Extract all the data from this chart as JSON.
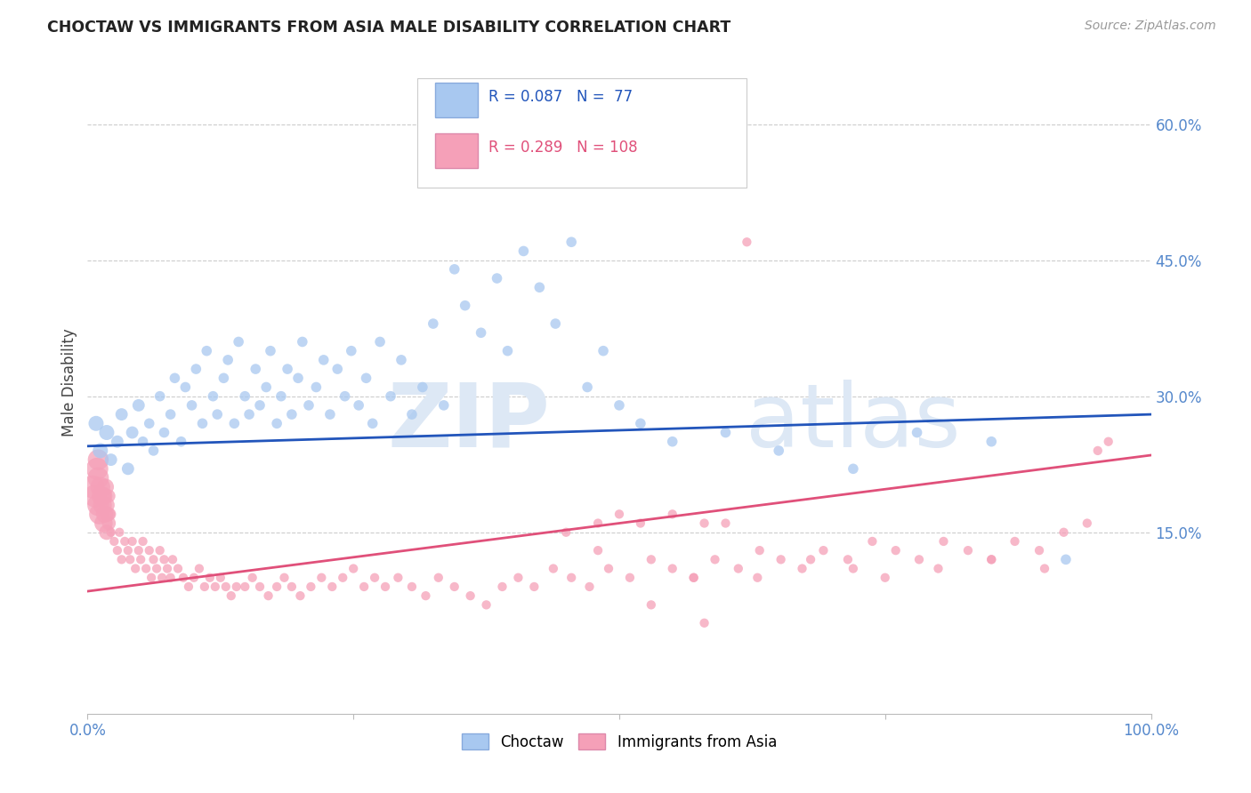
{
  "title": "CHOCTAW VS IMMIGRANTS FROM ASIA MALE DISABILITY CORRELATION CHART",
  "source": "Source: ZipAtlas.com",
  "ylabel": "Male Disability",
  "legend_label1": "Choctaw",
  "legend_label2": "Immigrants from Asia",
  "r1": 0.087,
  "n1": 77,
  "r2": 0.289,
  "n2": 108,
  "color1": "#A8C8F0",
  "color2": "#F5A0B8",
  "line_color1": "#2255BB",
  "line_color2": "#E0507A",
  "xlim": [
    0.0,
    1.0
  ],
  "ylim": [
    -0.05,
    0.68
  ],
  "yticks": [
    0.15,
    0.3,
    0.45,
    0.6
  ],
  "ytick_labels": [
    "15.0%",
    "30.0%",
    "45.0%",
    "60.0%"
  ],
  "xticks": [
    0.0,
    0.25,
    0.5,
    0.75,
    1.0
  ],
  "xtick_labels": [
    "0.0%",
    "",
    "",
    "",
    "100.0%"
  ],
  "blue_line": [
    0.245,
    0.28
  ],
  "pink_line": [
    0.085,
    0.235
  ],
  "choctaw_x": [
    0.008,
    0.012,
    0.018,
    0.022,
    0.028,
    0.032,
    0.038,
    0.042,
    0.048,
    0.052,
    0.058,
    0.062,
    0.068,
    0.072,
    0.078,
    0.082,
    0.088,
    0.092,
    0.098,
    0.102,
    0.108,
    0.112,
    0.118,
    0.122,
    0.128,
    0.132,
    0.138,
    0.142,
    0.148,
    0.152,
    0.158,
    0.162,
    0.168,
    0.172,
    0.178,
    0.182,
    0.188,
    0.192,
    0.198,
    0.202,
    0.208,
    0.215,
    0.222,
    0.228,
    0.235,
    0.242,
    0.248,
    0.255,
    0.262,
    0.268,
    0.275,
    0.285,
    0.295,
    0.305,
    0.315,
    0.325,
    0.335,
    0.345,
    0.355,
    0.37,
    0.385,
    0.395,
    0.41,
    0.425,
    0.44,
    0.455,
    0.47,
    0.485,
    0.5,
    0.52,
    0.55,
    0.6,
    0.65,
    0.72,
    0.78,
    0.85,
    0.92
  ],
  "choctaw_y": [
    0.27,
    0.24,
    0.26,
    0.23,
    0.25,
    0.28,
    0.22,
    0.26,
    0.29,
    0.25,
    0.27,
    0.24,
    0.3,
    0.26,
    0.28,
    0.32,
    0.25,
    0.31,
    0.29,
    0.33,
    0.27,
    0.35,
    0.3,
    0.28,
    0.32,
    0.34,
    0.27,
    0.36,
    0.3,
    0.28,
    0.33,
    0.29,
    0.31,
    0.35,
    0.27,
    0.3,
    0.33,
    0.28,
    0.32,
    0.36,
    0.29,
    0.31,
    0.34,
    0.28,
    0.33,
    0.3,
    0.35,
    0.29,
    0.32,
    0.27,
    0.36,
    0.3,
    0.34,
    0.28,
    0.31,
    0.38,
    0.29,
    0.44,
    0.4,
    0.37,
    0.43,
    0.35,
    0.46,
    0.42,
    0.38,
    0.47,
    0.31,
    0.35,
    0.29,
    0.27,
    0.25,
    0.26,
    0.24,
    0.22,
    0.26,
    0.25,
    0.12
  ],
  "asia_x_small": [
    0.005,
    0.007,
    0.009,
    0.01,
    0.01,
    0.01,
    0.011,
    0.012,
    0.013,
    0.014,
    0.015,
    0.015,
    0.016,
    0.017,
    0.018,
    0.018,
    0.019,
    0.02,
    0.02,
    0.021
  ],
  "asia_y_small": [
    0.2,
    0.19,
    0.22,
    0.18,
    0.21,
    0.23,
    0.17,
    0.2,
    0.19,
    0.18,
    0.16,
    0.19,
    0.17,
    0.2,
    0.18,
    0.15,
    0.17,
    0.16,
    0.19,
    0.17
  ],
  "asia_x": [
    0.022,
    0.025,
    0.028,
    0.03,
    0.032,
    0.035,
    0.038,
    0.04,
    0.042,
    0.045,
    0.048,
    0.05,
    0.052,
    0.055,
    0.058,
    0.06,
    0.062,
    0.065,
    0.068,
    0.07,
    0.072,
    0.075,
    0.078,
    0.08,
    0.085,
    0.09,
    0.095,
    0.1,
    0.105,
    0.11,
    0.115,
    0.12,
    0.125,
    0.13,
    0.135,
    0.14,
    0.148,
    0.155,
    0.162,
    0.17,
    0.178,
    0.185,
    0.192,
    0.2,
    0.21,
    0.22,
    0.23,
    0.24,
    0.25,
    0.26,
    0.27,
    0.28,
    0.292,
    0.305,
    0.318,
    0.33,
    0.345,
    0.36,
    0.375,
    0.39,
    0.405,
    0.42,
    0.438,
    0.455,
    0.472,
    0.49,
    0.51,
    0.53,
    0.55,
    0.57,
    0.59,
    0.612,
    0.632,
    0.652,
    0.672,
    0.692,
    0.715,
    0.738,
    0.76,
    0.782,
    0.805,
    0.828,
    0.85,
    0.872,
    0.895,
    0.918,
    0.94,
    0.96
  ],
  "asia_y": [
    0.15,
    0.14,
    0.13,
    0.15,
    0.12,
    0.14,
    0.13,
    0.12,
    0.14,
    0.11,
    0.13,
    0.12,
    0.14,
    0.11,
    0.13,
    0.1,
    0.12,
    0.11,
    0.13,
    0.1,
    0.12,
    0.11,
    0.1,
    0.12,
    0.11,
    0.1,
    0.09,
    0.1,
    0.11,
    0.09,
    0.1,
    0.09,
    0.1,
    0.09,
    0.08,
    0.09,
    0.09,
    0.1,
    0.09,
    0.08,
    0.09,
    0.1,
    0.09,
    0.08,
    0.09,
    0.1,
    0.09,
    0.1,
    0.11,
    0.09,
    0.1,
    0.09,
    0.1,
    0.09,
    0.08,
    0.1,
    0.09,
    0.08,
    0.07,
    0.09,
    0.1,
    0.09,
    0.11,
    0.1,
    0.09,
    0.11,
    0.1,
    0.12,
    0.11,
    0.1,
    0.12,
    0.11,
    0.13,
    0.12,
    0.11,
    0.13,
    0.12,
    0.14,
    0.13,
    0.12,
    0.14,
    0.13,
    0.12,
    0.14,
    0.13,
    0.15,
    0.16,
    0.25
  ],
  "asia_x_outliers": [
    0.62,
    0.48,
    0.5,
    0.55,
    0.58,
    0.6,
    0.45,
    0.52,
    0.57,
    0.63,
    0.68,
    0.72,
    0.75,
    0.8,
    0.85,
    0.9,
    0.95,
    0.48,
    0.53,
    0.58
  ],
  "asia_y_outliers": [
    0.47,
    0.16,
    0.17,
    0.17,
    0.16,
    0.16,
    0.15,
    0.16,
    0.1,
    0.1,
    0.12,
    0.11,
    0.1,
    0.11,
    0.12,
    0.11,
    0.24,
    0.13,
    0.07,
    0.05
  ]
}
